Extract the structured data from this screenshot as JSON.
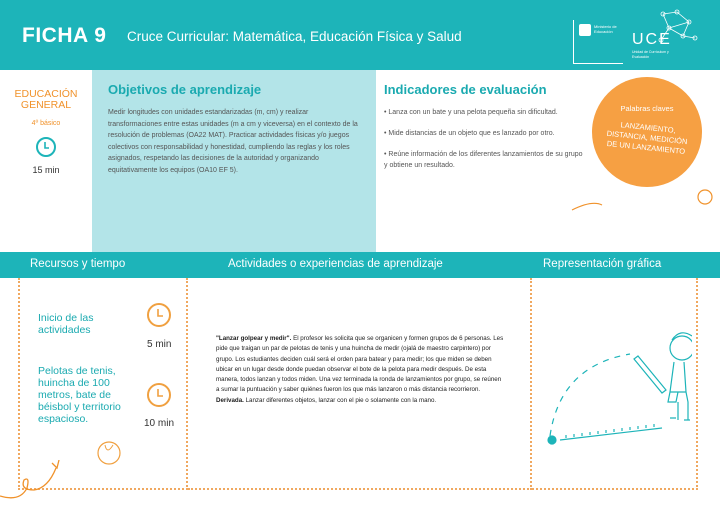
{
  "header": {
    "ficha": "FICHA 9",
    "subtitle": "Cruce Curricular: Matemática, Educación Física y Salud",
    "ministry": "Ministerio de Educación",
    "uce": "UCE",
    "uce_sub": "Unidad de Currículum y Evaluación"
  },
  "level": {
    "education": "EDUCACIÓN GENERAL",
    "grade": "4º básico",
    "time": "15 min"
  },
  "objectives": {
    "title": "Objetivos de aprendizaje",
    "text": "Medir longitudes con unidades estandarizadas (m, cm) y realizar transformaciones entre estas unidades (m a cm y viceversa) en el contexto de la resolución de problemas (OA22 MAT). Practicar actividades físicas y/o juegos colectivos con responsabilidad y honestidad, cumpliendo las reglas y los roles asignados, respetando las decisiones de la autoridad y organizando equitativamente los equipos (OA10 EF 5)."
  },
  "indicators": {
    "title": "Indicadores de evaluación",
    "items": [
      "• Lanza con un bate y una pelota pequeña sin dificultad.",
      "• Mide distancias de un objeto que es lanzado por otro.",
      "• Reúne información de los diferentes lanzamientos de su grupo y obtiene un resultado."
    ]
  },
  "keywords": {
    "title": "Palabras claves",
    "text": "LANZAMIENTO, DISTANCIA, MEDICIÓN DE UN LANZAMIENTO"
  },
  "band": {
    "resources": "Recursos y tiempo",
    "activities": "Actividades o experiencias de aprendizaje",
    "graphic": "Representación gráfica"
  },
  "resources": [
    {
      "text": "Inicio de las actividades",
      "time": "5 min"
    },
    {
      "text": "Pelotas de tenis, huincha de 100 metros, bate de béisbol y territorio espacioso.",
      "time": "10 min"
    }
  ],
  "activity": {
    "title": "\"Lanzar golpear y medir\".",
    "body": "El profesor les solicita que se organicen y formen grupos de 6 personas. Les pide que traigan un par de pelotas de tenis y una huincha de medir (ojalá de maestro carpintero) por grupo. Los estudiantes deciden cuál será el orden para batear y para medir; los que miden se deben ubicar en un lugar desde donde puedan observar el bote de la pelota para medir después. De esta manera, todos lanzan y todos miden. Una vez terminada la ronda de lanzamientos por grupo, se reúnen a sumar la puntuación y saber quiénes fueron los que más lanzaron o más distancia recorrieron.",
    "derived_label": "Derivada.",
    "derived": "Lanzar diferentes objetos, lanzar con el pie o solamente con la mano."
  },
  "colors": {
    "teal": "#1db4b9",
    "light_teal": "#b3e4e8",
    "orange": "#f6a043"
  }
}
